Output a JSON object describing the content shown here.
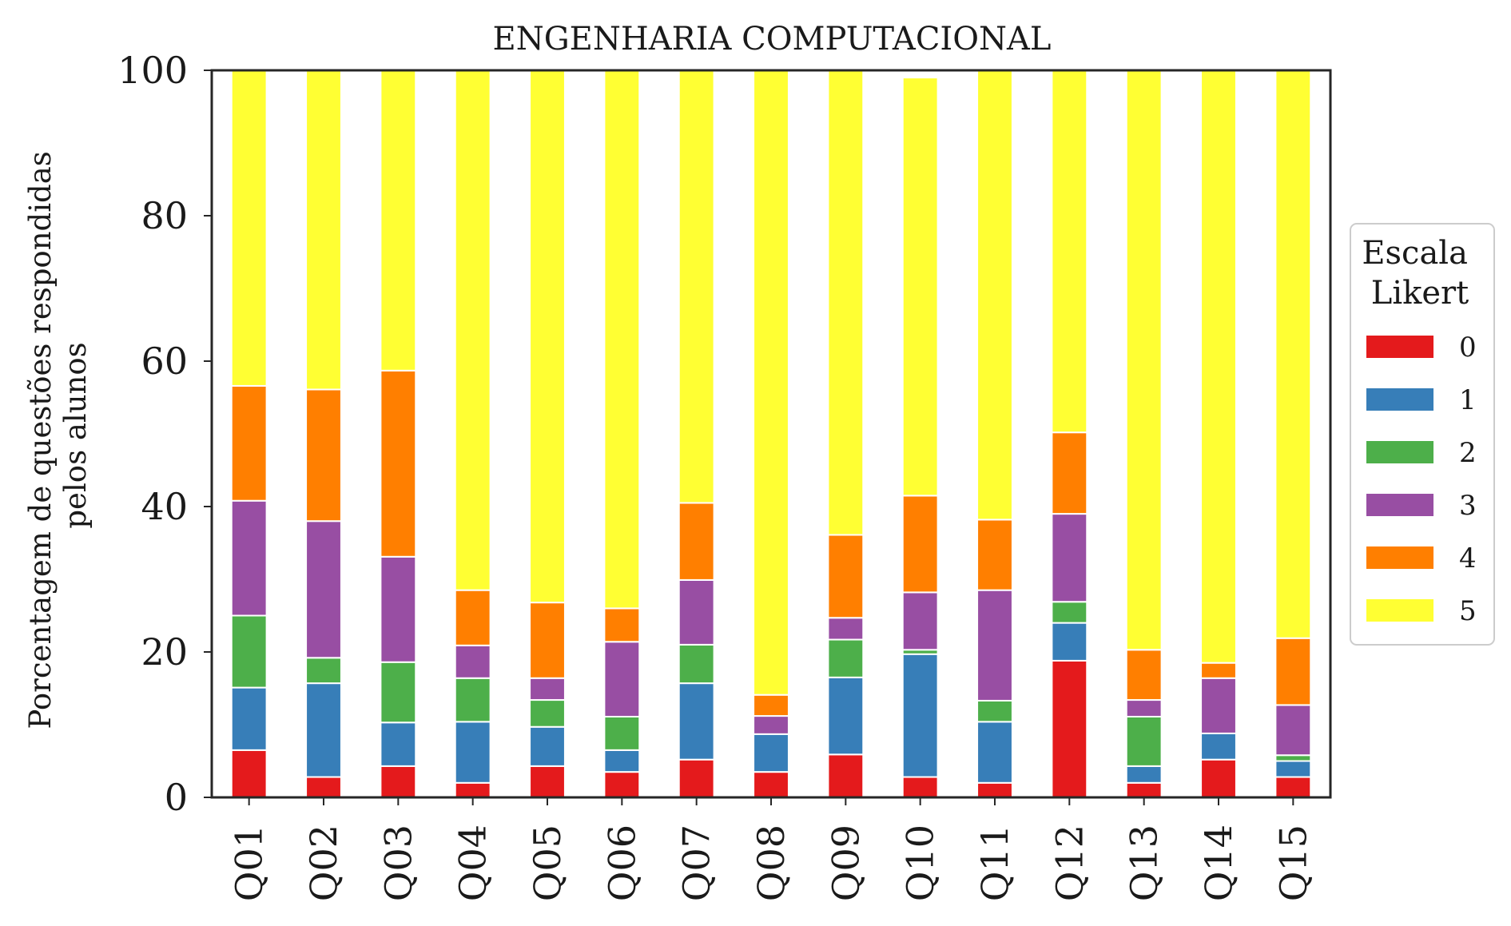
{
  "chart_data": {
    "type": "bar",
    "stacked": true,
    "title": "ENGENHARIA COMPUTACIONAL",
    "ylabel": [
      "Porcentagem de questões respondidas",
      "pelos alunos"
    ],
    "xlabel": "",
    "ylim": [
      0,
      100
    ],
    "yticks": [
      "0",
      "20",
      "40",
      "60",
      "80",
      "100"
    ],
    "grid": false,
    "categories": [
      "Q01",
      "Q02",
      "Q03",
      "Q04",
      "Q05",
      "Q06",
      "Q07",
      "Q08",
      "Q09",
      "Q10",
      "Q11",
      "Q12",
      "Q13",
      "Q14",
      "Q15"
    ],
    "legend": {
      "title": [
        "Escala",
        "Likert"
      ],
      "placement": "right"
    },
    "series": [
      {
        "name": "0",
        "color": "#e41a1c",
        "values": [
          6.5,
          2.8,
          4.3,
          2.0,
          4.3,
          3.5,
          5.2,
          3.5,
          5.9,
          2.8,
          2.0,
          18.8,
          2.0,
          5.2,
          2.8
        ]
      },
      {
        "name": "1",
        "color": "#377eb8",
        "values": [
          8.6,
          12.9,
          6.0,
          8.4,
          5.4,
          3.0,
          10.5,
          5.2,
          10.6,
          16.9,
          8.4,
          5.2,
          2.3,
          3.6,
          2.2
        ]
      },
      {
        "name": "2",
        "color": "#4daf4a",
        "values": [
          9.9,
          3.5,
          8.3,
          6.0,
          3.7,
          4.6,
          5.3,
          0.0,
          5.2,
          0.6,
          2.9,
          2.9,
          6.8,
          0.0,
          0.8
        ]
      },
      {
        "name": "3",
        "color": "#984ea3",
        "values": [
          15.8,
          18.8,
          14.5,
          4.5,
          3.0,
          10.3,
          8.9,
          2.5,
          3.0,
          7.9,
          15.2,
          12.1,
          2.3,
          7.6,
          6.9
        ]
      },
      {
        "name": "4",
        "color": "#ff7f00",
        "values": [
          15.8,
          18.1,
          25.6,
          7.6,
          10.4,
          4.6,
          10.6,
          2.9,
          11.4,
          13.3,
          9.7,
          11.2,
          6.9,
          2.1,
          9.2
        ]
      },
      {
        "name": "5",
        "color": "#ffff33",
        "values": [
          43.4,
          43.9,
          41.3,
          71.5,
          73.2,
          74.0,
          59.5,
          85.9,
          63.9,
          57.5,
          61.8,
          49.8,
          79.7,
          81.5,
          78.1
        ]
      }
    ]
  }
}
